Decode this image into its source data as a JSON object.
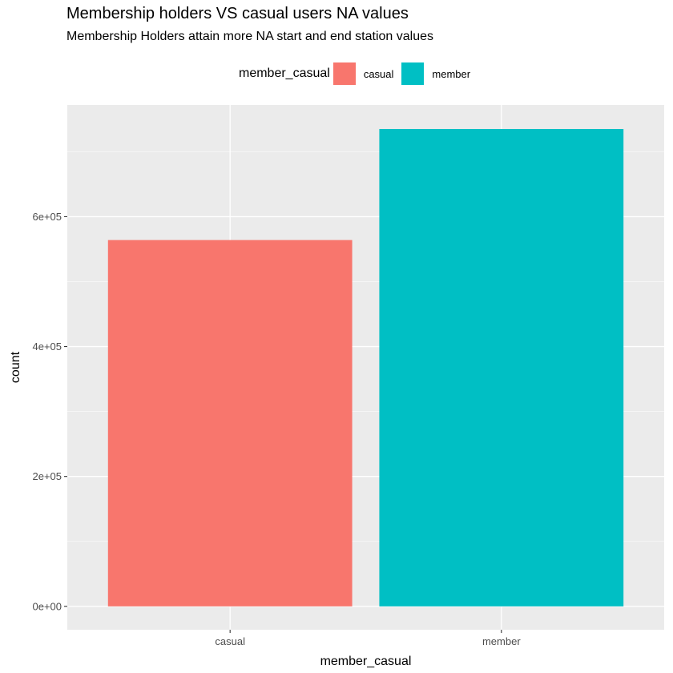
{
  "chart_data": {
    "type": "bar",
    "title": "Membership holders VS casual users NA values",
    "subtitle": "Membership Holders attain more NA start and end station values",
    "xlabel": "member_casual",
    "ylabel": "count",
    "categories": [
      "casual",
      "member"
    ],
    "values": [
      564000,
      735000
    ],
    "colors": [
      "#F8766D",
      "#00BFC4"
    ],
    "ylim": [
      -36000,
      772000
    ],
    "yticks": [
      0,
      200000,
      400000,
      600000
    ],
    "ytick_labels": [
      "0e+00",
      "2e+05",
      "4e+05",
      "6e+05"
    ],
    "legend": {
      "title": "member_casual",
      "placement": "top",
      "items": [
        {
          "label": "casual",
          "color": "#F8766D"
        },
        {
          "label": "member",
          "color": "#00BFC4"
        }
      ]
    },
    "grid": true,
    "panel_background": "#EBEBEB"
  }
}
